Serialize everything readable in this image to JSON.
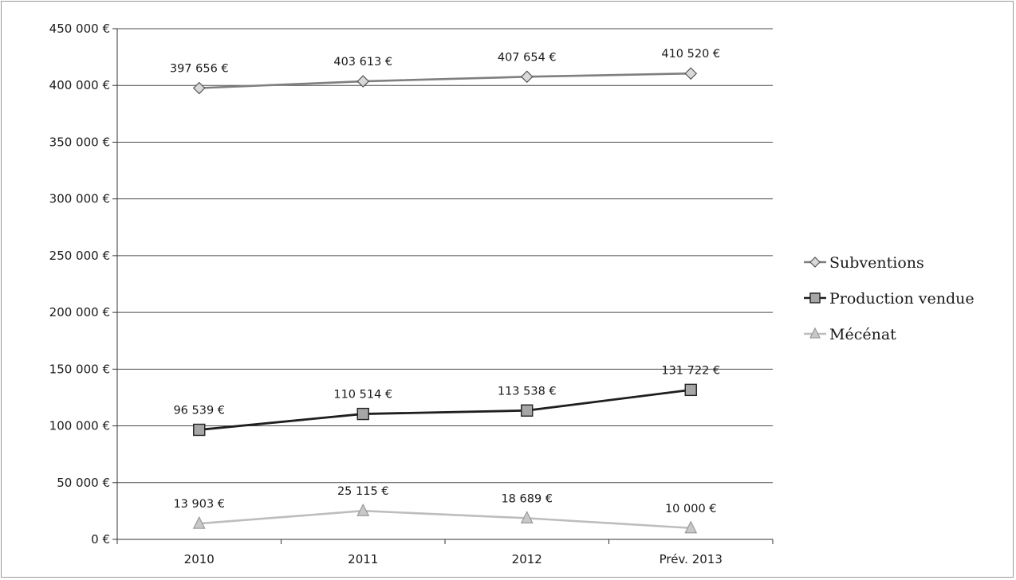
{
  "chart_data": {
    "type": "line",
    "title": "",
    "xlabel": "",
    "ylabel": "",
    "categories": [
      "2010",
      "2011",
      "2012",
      "Prév. 2013"
    ],
    "ylim": [
      0,
      450000
    ],
    "y_ticks": [
      0,
      50000,
      100000,
      150000,
      200000,
      250000,
      300000,
      350000,
      400000,
      450000
    ],
    "y_tick_labels": [
      "0 €",
      "50 000 €",
      "100 000 €",
      "150 000 €",
      "200 000 €",
      "250 000 €",
      "300 000 €",
      "350 000 €",
      "400 000 €",
      "450 000 €"
    ],
    "grid": true,
    "legend_position": "right",
    "series": [
      {
        "name": "Subventions",
        "marker": "diamond",
        "color": "#7f7f7f",
        "values": [
          397656,
          403613,
          407654,
          410520
        ],
        "labels": [
          "397 656 €",
          "403 613 €",
          "407 654 €",
          "410 520 €"
        ]
      },
      {
        "name": "Production vendue",
        "marker": "square",
        "color": "#1f1f1f",
        "values": [
          96539,
          110514,
          113538,
          131722
        ],
        "labels": [
          "96 539 €",
          "110 514 €",
          "113 538 €",
          "131 722 €"
        ]
      },
      {
        "name": "Mécénat",
        "marker": "triangle",
        "color": "#bdbdbd",
        "values": [
          13903,
          25115,
          18689,
          10000
        ],
        "labels": [
          "13 903 €",
          "25 115 €",
          "18 689 €",
          "10 000 €"
        ]
      }
    ]
  }
}
